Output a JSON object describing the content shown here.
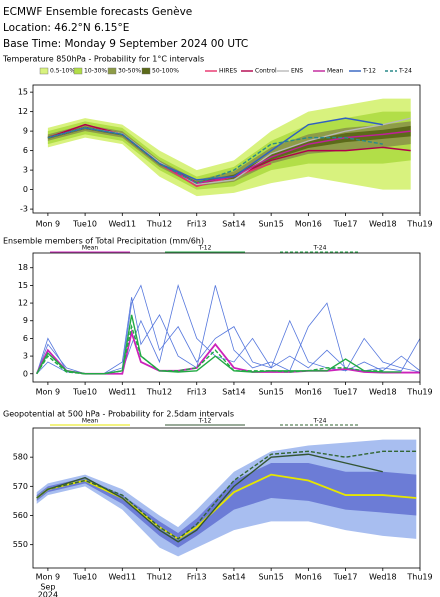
{
  "header": {
    "title": "ECMWF Ensemble forecasts Genève",
    "location": "Location:  46.2°N 6.15°E",
    "base_time": "Base Time: Monday  9 September 2024 00 UTC"
  },
  "chart_data": [
    {
      "type": "line",
      "title": "Temperature 850hPa - Probability for 1°C intervals",
      "x": [
        0,
        1,
        2,
        3,
        4,
        5,
        6,
        7,
        8,
        9,
        9.75
      ],
      "xlim": [
        -0.4,
        10
      ],
      "ylim": [
        -3.6,
        16.1
      ],
      "yticks": [
        -3,
        0,
        3,
        6,
        9,
        12,
        15
      ],
      "xticks": [
        {
          "value": 0,
          "label": "Mon 9"
        },
        {
          "value": 1,
          "label": "Tue10"
        },
        {
          "value": 2,
          "label": "Wed11"
        },
        {
          "value": 3,
          "label": "Thu12"
        },
        {
          "value": 4,
          "label": "Fri13"
        },
        {
          "value": 5,
          "label": "Sat14"
        },
        {
          "value": 6,
          "label": "Sun15"
        },
        {
          "value": 7,
          "label": "Mon16"
        },
        {
          "value": 8,
          "label": "Tue17"
        },
        {
          "value": 9,
          "label": "Wed18"
        },
        {
          "value": 10,
          "label": "Thu19"
        }
      ],
      "highlight_ticks": [
        6
      ],
      "highlight_color": "#e00000",
      "bands": [
        {
          "name": "0.5-10%",
          "color": "#d8f27e",
          "lower": [
            6.5,
            8,
            7,
            2,
            -1,
            -0.5,
            1,
            2,
            1,
            0,
            0
          ],
          "upper": [
            9.5,
            11,
            10,
            6,
            3,
            4.5,
            9,
            12,
            13,
            14,
            14
          ]
        },
        {
          "name": "10-30%",
          "color": "#b2de48",
          "lower": [
            7,
            8.5,
            7.5,
            3,
            0,
            0.5,
            3,
            4,
            4,
            4,
            4.5
          ],
          "upper": [
            9,
            10.5,
            9.5,
            5,
            2,
            3.5,
            7.5,
            10,
            11,
            12,
            12
          ]
        },
        {
          "name": "30-50%",
          "color": "#8e9c48",
          "lower": [
            7.5,
            9,
            8,
            3.5,
            0.5,
            1.2,
            4,
            5.5,
            6,
            6.5,
            7
          ],
          "upper": [
            8.5,
            10,
            9,
            4.5,
            1.5,
            2.8,
            6.5,
            8.5,
            9.5,
            10,
            10.5
          ]
        },
        {
          "name": "50-100%",
          "color": "#5c6a1a",
          "lower": [
            7.8,
            9.3,
            8.3,
            3.8,
            0.8,
            1.7,
            4.6,
            6.4,
            7.3,
            7.8,
            8.2
          ],
          "upper": [
            8.2,
            9.7,
            8.7,
            4.2,
            1.2,
            2.3,
            5.4,
            7.6,
            8.7,
            9.2,
            9.8
          ]
        }
      ],
      "series": [
        {
          "name": "HIRES",
          "color": "#e8306a",
          "dash": false,
          "values": [
            8,
            10,
            8.5,
            4,
            0.5,
            2,
            4,
            null,
            null,
            null,
            null
          ]
        },
        {
          "name": "Control",
          "color": "#b0004a",
          "dash": false,
          "values": [
            8,
            10,
            8.5,
            4,
            1,
            2,
            4.5,
            6,
            6,
            6.5,
            6
          ]
        },
        {
          "name": "ENS",
          "color": "#b8b8b8",
          "dash": false,
          "values": [
            8,
            9.5,
            8.6,
            4.2,
            0.8,
            1.5,
            5.5,
            7.5,
            9,
            10,
            11
          ]
        },
        {
          "name": "Mean",
          "color": "#c0209a",
          "dash": false,
          "values": [
            8,
            9.5,
            8.5,
            4,
            1,
            2,
            5,
            7,
            8,
            8.5,
            9
          ]
        },
        {
          "name": "T-12",
          "color": "#3060c0",
          "dash": false,
          "values": [
            8,
            9.5,
            8.5,
            4,
            1.5,
            2,
            6,
            10,
            11,
            10,
            null
          ]
        },
        {
          "name": "T-24",
          "color": "#2a8a8a",
          "dash": true,
          "values": [
            8,
            9.5,
            8.5,
            4,
            1,
            3,
            7,
            8,
            8,
            7,
            null
          ]
        }
      ]
    },
    {
      "type": "line",
      "title": "Ensemble members of Total Precipitation (mm/6h)",
      "x": [
        -0.3,
        0,
        0.5,
        1,
        1.5,
        2,
        2.25,
        2.5,
        3,
        3.5,
        4,
        4.5,
        5,
        5.5,
        6,
        6.5,
        7,
        7.5,
        8,
        8.5,
        9,
        9.5,
        10
      ],
      "xlim": [
        -0.4,
        10
      ],
      "ylim": [
        -1.4,
        20.5
      ],
      "yticks": [
        0,
        3,
        6,
        9,
        12,
        15,
        18
      ],
      "xticks": [
        {
          "value": 0,
          "label": "Mon 9"
        },
        {
          "value": 1,
          "label": "Tue10"
        },
        {
          "value": 2,
          "label": "Wed11"
        },
        {
          "value": 3,
          "label": "Thu12"
        },
        {
          "value": 4,
          "label": "Fri13"
        },
        {
          "value": 5,
          "label": "Sat14"
        },
        {
          "value": 6,
          "label": "Sun15"
        },
        {
          "value": 7,
          "label": "Mon16"
        },
        {
          "value": 8,
          "label": "Tue17"
        },
        {
          "value": 9,
          "label": "Wed18"
        },
        {
          "value": 10,
          "label": "Thu19"
        }
      ],
      "highlight_ticks": [
        6
      ],
      "highlight_color": "#e00000",
      "members_color": "#5577dd",
      "members": [
        [
          0,
          5,
          1,
          0,
          0,
          1,
          12,
          15,
          4,
          8,
          2,
          6,
          8,
          2,
          1,
          3,
          1,
          4,
          1,
          0.5,
          1,
          0.5,
          6
        ],
        [
          0,
          6,
          0.5,
          0,
          0,
          2,
          13,
          5,
          10,
          3,
          1,
          15,
          4,
          1,
          2,
          0.5,
          8,
          12,
          0.5,
          2,
          0.5,
          3,
          0.5
        ],
        [
          0,
          2,
          0.3,
          0,
          0,
          0.5,
          5,
          9,
          2,
          15,
          6,
          3,
          2,
          6,
          1,
          9,
          2,
          1,
          0.5,
          6,
          2,
          1,
          0.3
        ]
      ],
      "series": [
        {
          "name": "Mean",
          "color": "#cc22bb",
          "dash": false,
          "values": [
            0,
            4,
            0.5,
            0,
            0,
            0,
            7,
            2,
            0.5,
            0.5,
            1,
            5,
            1,
            0.3,
            0.3,
            0.3,
            0.5,
            0.5,
            0.8,
            0.3,
            0.2,
            0.2,
            0.2
          ]
        },
        {
          "name": "T-12",
          "color": "#22aa44",
          "dash": false,
          "values": [
            0,
            3.5,
            0.5,
            0,
            0,
            0.5,
            10,
            3,
            0.5,
            0.3,
            0.5,
            3,
            0.5,
            0.3,
            0.5,
            0.5,
            0.5,
            0.5,
            2.5,
            0.5,
            0.3,
            0.3,
            null
          ]
        },
        {
          "name": "T-24",
          "color": "#22aa44",
          "dash": true,
          "values": [
            0,
            3,
            0.3,
            0,
            0,
            0.5,
            8,
            3,
            0.5,
            0.5,
            1,
            4,
            0.5,
            0.5,
            0.5,
            0.3,
            0.5,
            1,
            1,
            0.5,
            0.5,
            null,
            null
          ]
        }
      ]
    },
    {
      "type": "line",
      "title": "Geopotential at 500 hPa - Probability for 2.5dam intervals",
      "x": [
        -0.3,
        0,
        1,
        2,
        3,
        3.5,
        4,
        5,
        6,
        7,
        8,
        9,
        9.9
      ],
      "xlim": [
        -0.4,
        10
      ],
      "ylim": [
        542,
        590
      ],
      "yticks": [
        550,
        560,
        570,
        580
      ],
      "xticks": [
        {
          "value": 0,
          "label": "Mon 9"
        },
        {
          "value": 1,
          "label": "Tue10"
        },
        {
          "value": 2,
          "label": "Wed11"
        },
        {
          "value": 3,
          "label": "Thu12"
        },
        {
          "value": 4,
          "label": "Fri13"
        },
        {
          "value": 5,
          "label": "Sat14"
        },
        {
          "value": 6,
          "label": "Sun15"
        },
        {
          "value": 7,
          "label": "Mon16"
        },
        {
          "value": 8,
          "label": "Tue17"
        },
        {
          "value": 9,
          "label": "Wed18"
        },
        {
          "value": 10,
          "label": "Thu19"
        }
      ],
      "highlight_ticks": [
        6
      ],
      "highlight_color": "#e00000",
      "date_label": [
        "Sep",
        "2024"
      ],
      "bands": [
        {
          "color": "#a8bef0",
          "lower": [
            564,
            567,
            570,
            562,
            549,
            546,
            549,
            555,
            558,
            558,
            555,
            553,
            552
          ],
          "upper": [
            568,
            571,
            574,
            569,
            560,
            556,
            562,
            575,
            582,
            584,
            585,
            586,
            586
          ]
        },
        {
          "color": "#6c7cd6",
          "lower": [
            565,
            568,
            571,
            564,
            553,
            549,
            553,
            562,
            566,
            565,
            562,
            561,
            560
          ],
          "upper": [
            567,
            570,
            573,
            567,
            558,
            554,
            559,
            572,
            578,
            578,
            575,
            575,
            574
          ]
        }
      ],
      "series": [
        {
          "name": "Mean",
          "color": "#e6e600",
          "dash": false,
          "values": [
            566,
            569,
            572,
            566,
            556,
            552,
            556,
            568,
            574,
            572,
            567,
            567,
            566
          ]
        },
        {
          "name": "T-12",
          "color": "#335533",
          "dash": false,
          "values": [
            566,
            569,
            573,
            566,
            555,
            551,
            555,
            570,
            580,
            581,
            578,
            575,
            null
          ]
        },
        {
          "name": "T-24",
          "color": "#336633",
          "dash": true,
          "values": [
            566,
            569,
            572,
            567,
            556,
            552,
            557,
            572,
            581,
            582,
            580,
            582,
            582
          ]
        }
      ]
    }
  ]
}
